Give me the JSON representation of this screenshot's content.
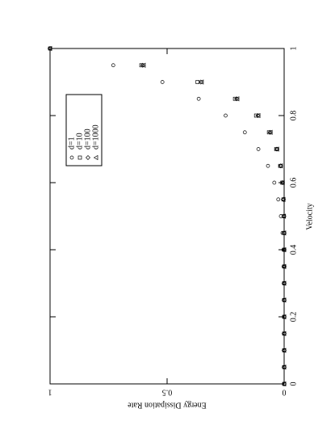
{
  "chart_data": {
    "type": "scatter",
    "x_label": "Velocity",
    "y_label": "Energy Dissipation Rate",
    "x": [
      0,
      0.05,
      0.1,
      0.15,
      0.2,
      0.25,
      0.3,
      0.35,
      0.4,
      0.45,
      0.5,
      0.55,
      0.6,
      0.65,
      0.7,
      0.75,
      0.8,
      0.85,
      0.9,
      0.95,
      1
    ],
    "series": [
      {
        "name": "d=1",
        "marker": "circle",
        "color": "#000000",
        "values": [
          0,
          0,
          0,
          0,
          0,
          0,
          0.001,
          0.002,
          0.003,
          0.007,
          0.014,
          0.025,
          0.042,
          0.069,
          0.11,
          0.168,
          0.25,
          0.365,
          0.52,
          0.73,
          1
        ]
      },
      {
        "name": "d=10",
        "marker": "square",
        "color": "#000000",
        "values": [
          0,
          0,
          0,
          0,
          0,
          0,
          0,
          0,
          0,
          0.001,
          0.001,
          0.003,
          0.008,
          0.017,
          0.034,
          0.065,
          0.12,
          0.21,
          0.37,
          0.61,
          1
        ]
      },
      {
        "name": "d=100",
        "marker": "diamond",
        "color": "#000000",
        "values": [
          0,
          0,
          0,
          0,
          0,
          0,
          0,
          0,
          0,
          0,
          0.001,
          0.003,
          0.007,
          0.015,
          0.031,
          0.06,
          0.112,
          0.203,
          0.356,
          0.604,
          1
        ]
      },
      {
        "name": "d=1000",
        "marker": "triangle",
        "color": "#000000",
        "values": [
          0,
          0,
          0,
          0,
          0,
          0,
          0,
          0,
          0,
          0,
          0.001,
          0.003,
          0.006,
          0.014,
          0.03,
          0.058,
          0.11,
          0.2,
          0.352,
          0.6,
          1
        ]
      }
    ],
    "xlim": [
      0,
      1
    ],
    "xticks": [
      0,
      0.2,
      0.4,
      0.6,
      0.8,
      1
    ],
    "ylim": [
      0,
      1
    ],
    "yticks": [
      0,
      0.5,
      1
    ],
    "legend": "upper-left"
  }
}
